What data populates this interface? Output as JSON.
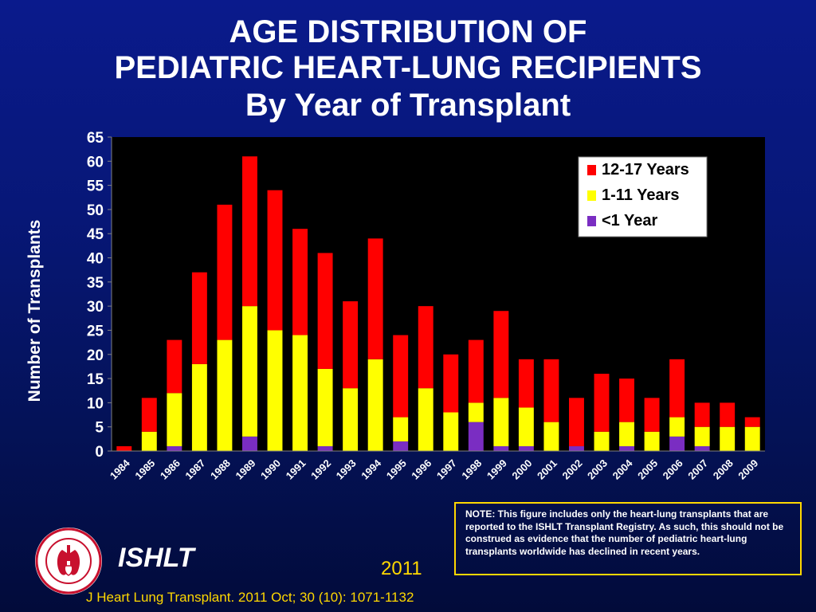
{
  "slide": {
    "title_line1": "AGE DISTRIBUTION OF",
    "title_line2": "PEDIATRIC HEART-LUNG RECIPIENTS",
    "title_line3": "By Year of Transplant",
    "note": "NOTE: This figure includes only the heart-lung transplants that are reported to the ISHLT Transplant Registry.  As such, this should not be construed as evidence that the number of pediatric heart-lung transplants worldwide has declined in recent years.",
    "org": "ISHLT",
    "year": "2011",
    "citation": "J Heart Lung Transplant. 2011 Oct; 30 (10): 1071-1132",
    "logo_ring_text": "INTERNATIONAL SOCIETY FOR HEART & LUNG TRANSPLANTATION"
  },
  "colors": {
    "background": "#071777",
    "plot_background": "#000000",
    "series_under1": "#7a2dc2",
    "series_1to11": "#ffff00",
    "series_12to17": "#ff0000",
    "note_border": "#ffd800",
    "footer_text": "#ffd800"
  },
  "chart_data": {
    "type": "bar",
    "stacked": true,
    "title": "",
    "xlabel": "",
    "ylabel": "Number of Transplants",
    "ylim": [
      0,
      65
    ],
    "yticks": [
      "0",
      "5",
      "10",
      "15",
      "20",
      "25",
      "30",
      "35",
      "40",
      "45",
      "50",
      "55",
      "60",
      "65"
    ],
    "grid": false,
    "legend_position": "top-right",
    "categories": [
      "1984",
      "1985",
      "1986",
      "1987",
      "1988",
      "1989",
      "1990",
      "1991",
      "1992",
      "1993",
      "1994",
      "1995",
      "1996",
      "1997",
      "1998",
      "1999",
      "2000",
      "2001",
      "2002",
      "2003",
      "2004",
      "2005",
      "2006",
      "2007",
      "2008",
      "2009"
    ],
    "series": [
      {
        "name": "<1 Year",
        "color": "#7a2dc2",
        "values": [
          0,
          0,
          1,
          0,
          0,
          3,
          0,
          0,
          1,
          0,
          0,
          2,
          0,
          0,
          6,
          1,
          1,
          0,
          1,
          0,
          1,
          0,
          3,
          1,
          0,
          0
        ]
      },
      {
        "name": "1-11 Years",
        "color": "#ffff00",
        "values": [
          0,
          4,
          11,
          18,
          23,
          27,
          25,
          24,
          16,
          13,
          19,
          5,
          13,
          8,
          4,
          10,
          8,
          6,
          0,
          4,
          5,
          4,
          4,
          4,
          5,
          5
        ]
      },
      {
        "name": "12-17 Years",
        "color": "#ff0000",
        "values": [
          1,
          7,
          11,
          19,
          28,
          31,
          29,
          22,
          24,
          18,
          25,
          17,
          17,
          12,
          13,
          18,
          10,
          13,
          10,
          12,
          9,
          7,
          12,
          5,
          5,
          2
        ]
      }
    ],
    "legend_order": [
      "12-17 Years",
      "1-11 Years",
      "<1 Year"
    ]
  }
}
